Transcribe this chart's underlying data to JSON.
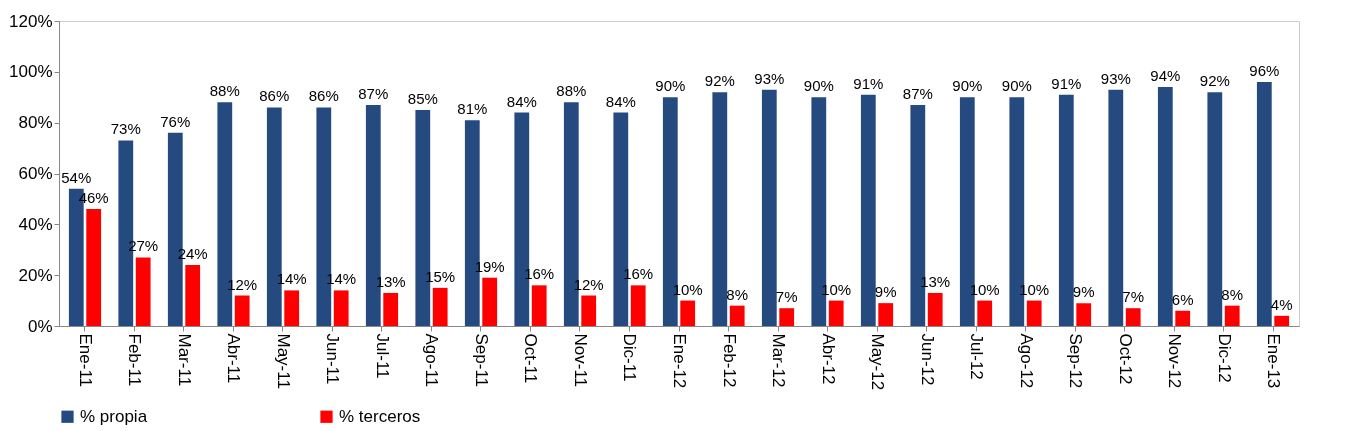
{
  "chart_data": {
    "type": "bar",
    "categories": [
      "Ene-11",
      "Feb-11",
      "Mar-11",
      "Abr-11",
      "May-11",
      "Jun-11",
      "Jul-11",
      "Ago-11",
      "Sep-11",
      "Oct-11",
      "Nov-11",
      "Dic-11",
      "Ene-12",
      "Feb-12",
      "Mar-12",
      "Abr-12",
      "May-12",
      "Jun-12",
      "Jul-12",
      "Ago-12",
      "Sep-12",
      "Oct-12",
      "Nov-12",
      "Dic-12",
      "Ene-13"
    ],
    "series": [
      {
        "name": "% propia",
        "color": "#244a7f",
        "values": [
          54,
          73,
          76,
          88,
          86,
          86,
          87,
          85,
          81,
          84,
          88,
          84,
          90,
          92,
          93,
          90,
          91,
          87,
          90,
          90,
          91,
          93,
          94,
          92,
          96
        ],
        "value_labels": [
          "54%",
          "73%",
          "76%",
          "88%",
          "86%",
          "86%",
          "87%",
          "85%",
          "81%",
          "84%",
          "88%",
          "84%",
          "90%",
          "92%",
          "93%",
          "90%",
          "91%",
          "87%",
          "90%",
          "90%",
          "91%",
          "93%",
          "94%",
          "92%",
          "96%"
        ]
      },
      {
        "name": "% terceros",
        "color": "#ff0000",
        "values": [
          46,
          27,
          24,
          12,
          14,
          14,
          13,
          15,
          19,
          16,
          12,
          16,
          10,
          8,
          7,
          10,
          9,
          13,
          10,
          10,
          9,
          7,
          6,
          8,
          4
        ],
        "value_labels": [
          "46%",
          "27%",
          "24%",
          "12%",
          "14%",
          "14%",
          "13%",
          "15%",
          "19%",
          "16%",
          "12%",
          "16%",
          "10%",
          "8%",
          "7%",
          "10%",
          "9%",
          "13%",
          "10%",
          "10%",
          "9%",
          "7%",
          "6%",
          "8%",
          "4%"
        ]
      }
    ],
    "ylim": [
      0,
      120
    ],
    "yticks": [
      {
        "value": 0,
        "label": "0%"
      },
      {
        "value": 20,
        "label": "20%"
      },
      {
        "value": 40,
        "label": "40%"
      },
      {
        "value": 60,
        "label": "60%"
      },
      {
        "value": 80,
        "label": "80%"
      },
      {
        "value": 100,
        "label": "100%"
      },
      {
        "value": 120,
        "label": "120%"
      }
    ],
    "legend": "bottom"
  }
}
